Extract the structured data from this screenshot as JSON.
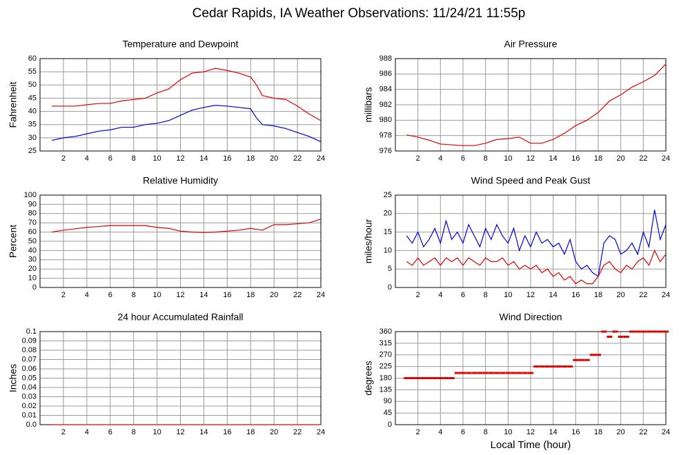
{
  "title": "Cedar Rapids, IA Weather Observations: 11/24/21 11:55p",
  "chart_data": [
    {
      "type": "line",
      "title": "Temperature and Dewpoint",
      "ylabel": "Fahrenheit",
      "grid": true,
      "xlim": [
        0,
        24
      ],
      "xticks": [
        2,
        4,
        6,
        8,
        10,
        12,
        14,
        16,
        18,
        20,
        22,
        24
      ],
      "ylim": [
        25,
        60
      ],
      "yticks": [
        25,
        30,
        35,
        40,
        45,
        50,
        55,
        60
      ],
      "x": [
        1,
        2,
        3,
        4,
        5,
        6,
        7,
        8,
        9,
        10,
        11,
        12,
        13,
        14,
        15,
        16,
        17,
        18,
        18.5,
        19,
        20,
        21,
        22,
        23,
        24
      ],
      "series": [
        {
          "color": "#e00000",
          "values": [
            42,
            42,
            42,
            42.5,
            43,
            43,
            44,
            44.5,
            45,
            47,
            48.5,
            52,
            54.5,
            55,
            56.3,
            55.5,
            54.5,
            53,
            50,
            46,
            45,
            44.5,
            42,
            39,
            36.5
          ]
        },
        {
          "color": "#0000dd",
          "values": [
            29,
            30,
            30.5,
            31.5,
            32.5,
            33,
            34,
            34,
            35,
            35.5,
            36.5,
            38.5,
            40.5,
            41.5,
            42.3,
            42,
            41.5,
            41,
            37.5,
            35,
            34.5,
            33.5,
            32,
            30.5,
            28.5
          ]
        }
      ]
    },
    {
      "type": "line",
      "title": "Air Pressure",
      "ylabel": "millibars",
      "grid": true,
      "xlim": [
        0,
        24
      ],
      "xticks": [
        2,
        4,
        6,
        8,
        10,
        12,
        14,
        16,
        18,
        20,
        22,
        24
      ],
      "ylim": [
        976,
        988
      ],
      "yticks": [
        976,
        978,
        980,
        982,
        984,
        986,
        988
      ],
      "x": [
        1,
        2,
        3,
        4,
        5,
        6,
        7,
        8,
        9,
        10,
        11,
        12,
        13,
        14,
        15,
        16,
        17,
        18,
        19,
        20,
        21,
        22,
        23,
        24
      ],
      "series": [
        {
          "color": "#e00000",
          "values": [
            978.1,
            977.8,
            977.4,
            976.9,
            976.8,
            976.7,
            976.7,
            977.0,
            977.5,
            977.6,
            977.8,
            977.0,
            977.0,
            977.5,
            978.3,
            979.3,
            980.0,
            981.0,
            982.5,
            983.3,
            984.3,
            985.0,
            985.8,
            987.3
          ]
        }
      ]
    },
    {
      "type": "line",
      "title": "Relative Humidity",
      "ylabel": "Percent",
      "grid": true,
      "xlim": [
        0,
        24
      ],
      "xticks": [
        2,
        4,
        6,
        8,
        10,
        12,
        14,
        16,
        18,
        20,
        22,
        24
      ],
      "ylim": [
        0,
        100
      ],
      "yticks": [
        0,
        10,
        20,
        30,
        40,
        50,
        60,
        70,
        80,
        90,
        100
      ],
      "x": [
        1,
        2,
        3,
        4,
        5,
        6,
        7,
        8,
        9,
        10,
        11,
        12,
        13,
        14,
        15,
        16,
        17,
        18,
        19,
        20,
        21,
        22,
        23,
        24
      ],
      "series": [
        {
          "color": "#e00000",
          "values": [
            60,
            62,
            63.5,
            65,
            66,
            67,
            67,
            67,
            67,
            65,
            64,
            61,
            60,
            59.5,
            60,
            61,
            62,
            64,
            62,
            68,
            68,
            69,
            70,
            74
          ]
        }
      ]
    },
    {
      "type": "line",
      "title": "Wind Speed and Peak Gust",
      "ylabel": "miles/hour",
      "grid": true,
      "xlim": [
        0,
        24
      ],
      "xticks": [
        2,
        4,
        6,
        8,
        10,
        12,
        14,
        16,
        18,
        20,
        22,
        24
      ],
      "ylim": [
        0,
        25
      ],
      "yticks": [
        0,
        5,
        10,
        15,
        20,
        25
      ],
      "x": [
        1,
        1.5,
        2,
        2.5,
        3,
        3.5,
        4,
        4.5,
        5,
        5.5,
        6,
        6.5,
        7,
        7.5,
        8,
        8.5,
        9,
        9.5,
        10,
        10.5,
        11,
        11.5,
        12,
        12.5,
        13,
        13.5,
        14,
        14.5,
        15,
        15.5,
        16,
        16.5,
        17,
        17.5,
        18,
        18.5,
        19,
        19.5,
        20,
        20.5,
        21,
        21.5,
        22,
        22.5,
        23,
        23.5,
        24
      ],
      "series": [
        {
          "color": "#0000dd",
          "values": [
            14,
            12,
            15,
            11,
            13,
            16,
            12,
            18,
            13,
            15,
            12,
            17,
            14,
            11,
            16,
            13,
            17,
            14,
            12,
            16,
            10,
            14,
            11,
            15,
            12,
            13,
            11,
            12,
            9,
            13,
            7,
            5,
            6,
            4,
            3,
            12,
            14,
            13,
            9,
            10,
            12,
            9,
            15,
            11,
            21,
            13,
            17
          ]
        },
        {
          "color": "#e00000",
          "values": [
            7,
            6,
            8,
            6,
            7,
            8,
            6,
            8,
            7,
            8,
            6,
            8,
            7,
            6,
            8,
            7,
            7,
            8,
            6,
            7,
            5,
            6,
            5,
            6,
            4,
            5,
            3,
            4,
            2,
            3,
            1,
            2,
            1,
            1,
            3,
            6,
            7,
            5,
            4,
            6,
            5,
            7,
            8,
            6,
            10,
            7,
            9
          ]
        }
      ]
    },
    {
      "type": "line",
      "title": "24 hour Accumulated Rainfall",
      "ylabel": "Inches",
      "grid": true,
      "xlim": [
        0,
        24
      ],
      "xticks": [
        2,
        4,
        6,
        8,
        10,
        12,
        14,
        16,
        18,
        20,
        22,
        24
      ],
      "ylim": [
        0,
        0.1
      ],
      "yticks": [
        {
          "value": 0,
          "label": "0.0"
        },
        0.01,
        0.02,
        0.03,
        0.04,
        0.05,
        0.06,
        0.07,
        0.08,
        0.09,
        0.1
      ],
      "x": [
        1,
        24
      ],
      "series": [
        {
          "color": "#e00000",
          "values": [
            0,
            0
          ]
        }
      ]
    },
    {
      "type": "scatter",
      "title": "Wind Direction",
      "ylabel": "degrees",
      "xlabel": "Local Time (hour)",
      "grid": true,
      "xlim": [
        0,
        24
      ],
      "xticks": [
        2,
        4,
        6,
        8,
        10,
        12,
        14,
        16,
        18,
        20,
        22,
        24
      ],
      "ylim": [
        0,
        360
      ],
      "yticks": [
        0,
        45,
        90,
        135,
        180,
        225,
        270,
        315,
        360
      ],
      "x": [
        1,
        1.5,
        2,
        2.5,
        3,
        3.5,
        4,
        4.5,
        5,
        5.5,
        6,
        6.5,
        7,
        7.5,
        8,
        8.5,
        9,
        9.5,
        10,
        10.5,
        11,
        11.5,
        12,
        12.5,
        13,
        13.5,
        14,
        14.5,
        15,
        15.5,
        16,
        16.5,
        17,
        17.5,
        18,
        18.5,
        19,
        19.5,
        20,
        20.5,
        21,
        21.5,
        22,
        22.5,
        23,
        23.5,
        24
      ],
      "series": [
        {
          "color": "#e00000",
          "values": [
            180,
            180,
            180,
            180,
            180,
            180,
            180,
            180,
            180,
            200,
            200,
            200,
            200,
            200,
            200,
            200,
            200,
            200,
            200,
            200,
            200,
            200,
            200,
            225,
            225,
            225,
            225,
            225,
            225,
            225,
            250,
            250,
            250,
            270,
            270,
            360,
            340,
            360,
            340,
            340,
            360,
            360,
            360,
            360,
            360,
            360,
            360
          ]
        }
      ]
    }
  ]
}
